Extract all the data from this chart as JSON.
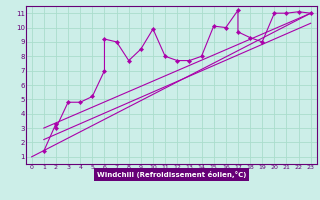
{
  "xlabel": "Windchill (Refroidissement éolien,°C)",
  "bg_color": "#cceee8",
  "grid_color": "#aaddcc",
  "line_color": "#aa00aa",
  "axis_bar_color": "#660077",
  "text_color": "#660077",
  "xlim": [
    -0.5,
    23.5
  ],
  "ylim": [
    0.5,
    11.5
  ],
  "xticks": [
    0,
    1,
    2,
    3,
    4,
    5,
    6,
    7,
    8,
    9,
    10,
    11,
    12,
    13,
    14,
    15,
    16,
    17,
    18,
    19,
    20,
    21,
    22,
    23
  ],
  "yticks": [
    1,
    2,
    3,
    4,
    5,
    6,
    7,
    8,
    9,
    10,
    11
  ],
  "scatter_x": [
    1,
    2,
    2,
    3,
    4,
    5,
    6,
    6,
    7,
    8,
    9,
    10,
    11,
    12,
    13,
    14,
    15,
    16,
    17,
    17,
    18,
    19,
    20,
    21,
    22,
    23
  ],
  "scatter_y": [
    1.4,
    3.3,
    3.0,
    4.8,
    4.8,
    5.2,
    7.0,
    9.2,
    9.0,
    7.7,
    8.5,
    9.9,
    8.0,
    7.7,
    7.7,
    8.0,
    10.1,
    10.0,
    11.2,
    9.7,
    9.3,
    9.0,
    11.0,
    11.0,
    11.1,
    11.0
  ],
  "line1_x": [
    1,
    23
  ],
  "line1_y": [
    2.2,
    10.3
  ],
  "line2_x": [
    1,
    23
  ],
  "line2_y": [
    3.0,
    11.0
  ],
  "line3_x": [
    0,
    23
  ],
  "line3_y": [
    1.0,
    11.0
  ]
}
